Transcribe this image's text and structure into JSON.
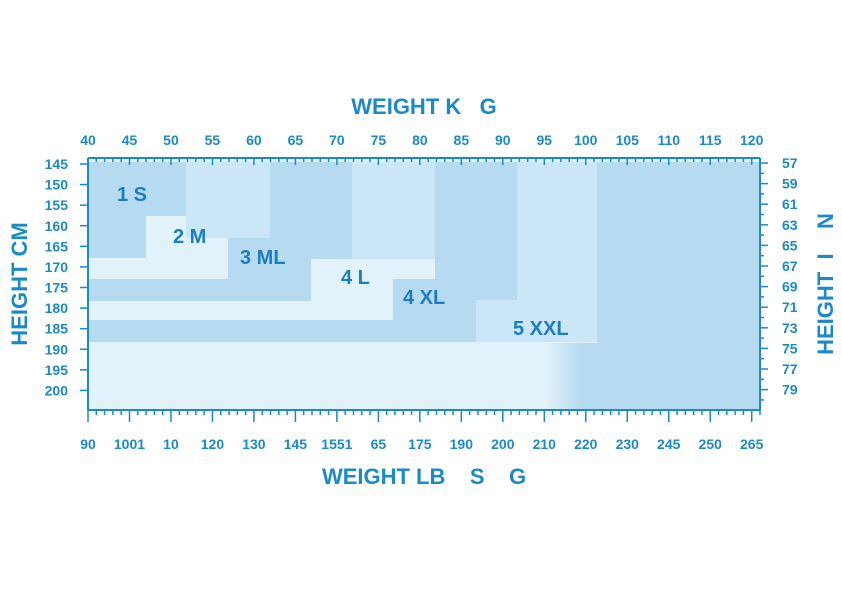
{
  "chart_data": {
    "type": "heatmap",
    "title": "",
    "top_axis_label": "WEIGHT K   G",
    "bottom_axis_label": "WEIGHT LB    S    G",
    "left_axis_label": "HEIGHT CM",
    "right_axis_label": "HEIGHT  I    N",
    "weight_kg_ticks": [
      "40",
      "45",
      "50",
      "55",
      "60",
      "65",
      "70",
      "75",
      "80",
      "85",
      "90",
      "95",
      "100",
      "105",
      "110",
      "115",
      "120"
    ],
    "weight_lbs_ticks": [
      "90",
      "1001",
      "10",
      "120",
      "130",
      "145",
      "1551",
      "65",
      "175",
      "190",
      "200",
      "210",
      "220",
      "230",
      "245",
      "250",
      "265"
    ],
    "height_cm_ticks": [
      "145",
      "150",
      "155",
      "160",
      "165",
      "170",
      "175",
      "180",
      "185",
      "190",
      "195",
      "200"
    ],
    "height_in_ticks": [
      "57",
      "59",
      "61",
      "63",
      "65",
      "67",
      "69",
      "71",
      "73",
      "75",
      "77",
      "79"
    ],
    "weight_range_kg": [
      40,
      121
    ],
    "height_range_cm": [
      145,
      205
    ],
    "colors": {
      "axis": "#1a8acb",
      "background": "#e2f2fb",
      "zone_light": "#cbe6f6",
      "zone_dark": "#b6dbf1"
    },
    "sizes": [
      {
        "label": "1 S"
      },
      {
        "label": "2 M"
      },
      {
        "label": "3 ML"
      },
      {
        "label": "4 L"
      },
      {
        "label": "4 XL"
      },
      {
        "label": "5 XXL"
      }
    ]
  }
}
